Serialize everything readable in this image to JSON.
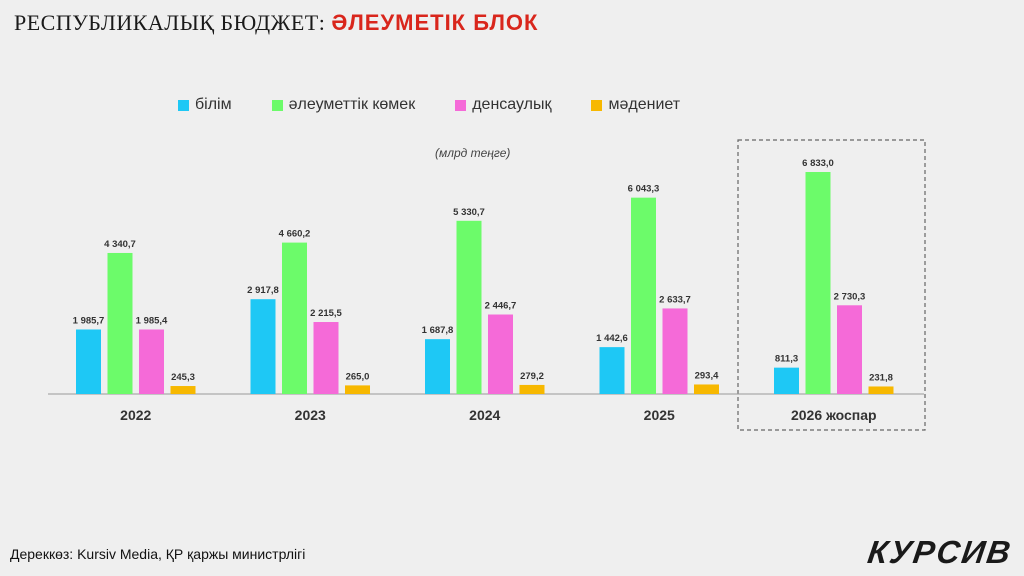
{
  "header": {
    "title_main": "РЕСПУБЛИКАЛЫҚ БЮДЖЕТ:",
    "title_accent": "ӘЛЕУМЕТІК БЛОК"
  },
  "unit_note": "(млрд теңге)",
  "footer": {
    "source": "Дереккөз: Kursiv Media, ҚР қаржы министрлігі",
    "brand": "КУРСИВ"
  },
  "chart_data": {
    "type": "bar",
    "categories": [
      "2022",
      "2023",
      "2024",
      "2025",
      "2026 жоспар"
    ],
    "highlight_category": "2026 жоспар",
    "grid": false,
    "legend_position": "top",
    "series": [
      {
        "name": "білім",
        "color": "#1ec8f5",
        "values": [
          1985.7,
          2917.8,
          1687.8,
          1442.6,
          811.3
        ],
        "labels": [
          "1 985,7",
          "2 917,8",
          "1 687,8",
          "1 442,6",
          "811,3"
        ]
      },
      {
        "name": "әлеуметтік көмек",
        "color": "#6cfb6a",
        "values": [
          4340.7,
          4660.2,
          5330.7,
          6043.3,
          6833.0
        ],
        "labels": [
          "4 340,7",
          "4 660,2",
          "5 330,7",
          "6 043,3",
          "6 833,0"
        ]
      },
      {
        "name": "денсаулық",
        "color": "#f56ad8",
        "values": [
          1985.4,
          2215.5,
          2446.7,
          2633.7,
          2730.3
        ],
        "labels": [
          "1 985,4",
          "2 215,5",
          "2 446,7",
          "2 633,7",
          "2 730,3"
        ]
      },
      {
        "name": "мәдениет",
        "color": "#f7b800",
        "values": [
          245.3,
          265.0,
          279.2,
          293.4,
          231.8
        ],
        "labels": [
          "245,3",
          "265,0",
          "279,2",
          "293,4",
          "231,8"
        ]
      }
    ]
  }
}
